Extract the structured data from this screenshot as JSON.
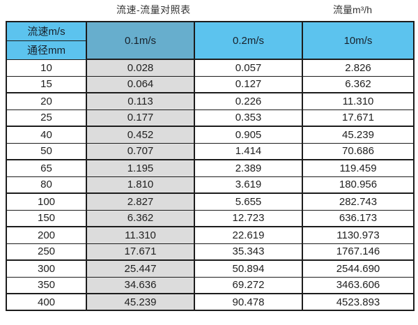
{
  "header": {
    "title": "流速-流量对照表",
    "unit_label": "流量m³/h"
  },
  "table": {
    "corner_top": "流速m/s",
    "corner_bottom": "通径mm"
  },
  "colors": {
    "header_blue": "#5cc3ee",
    "header_blue_dark": "#67aecd",
    "column_gray": "#dcdcdc",
    "border": "#1c1c1c"
  },
  "chart_data": {
    "type": "table",
    "title": "流速-流量对照表",
    "right_caption": "流量m³/h",
    "column_header_label": "流速m/s",
    "row_header_label": "通径mm",
    "columns": [
      "0.1m/s",
      "0.2m/s",
      "10m/s"
    ],
    "rows": [
      [
        "10",
        "0.028",
        "0.057",
        "2.826"
      ],
      [
        "15",
        "0.064",
        "0.127",
        "6.362"
      ],
      [
        "20",
        "0.113",
        "0.226",
        "11.310"
      ],
      [
        "25",
        "0.177",
        "0.353",
        "17.671"
      ],
      [
        "40",
        "0.452",
        "0.905",
        "45.239"
      ],
      [
        "50",
        "0.707",
        "1.414",
        "70.686"
      ],
      [
        "65",
        "1.195",
        "2.389",
        "119.459"
      ],
      [
        "80",
        "1.810",
        "3.619",
        "180.956"
      ],
      [
        "100",
        "2.827",
        "5.655",
        "282.743"
      ],
      [
        "150",
        "6.362",
        "12.723",
        "636.173"
      ],
      [
        "200",
        "11.310",
        "22.619",
        "1130.973"
      ],
      [
        "250",
        "17.671",
        "35.343",
        "1767.146"
      ],
      [
        "300",
        "25.447",
        "50.894",
        "2544.690"
      ],
      [
        "350",
        "34.636",
        "69.272",
        "3463.606"
      ],
      [
        "400",
        "45.239",
        "90.478",
        "4523.893"
      ]
    ]
  }
}
